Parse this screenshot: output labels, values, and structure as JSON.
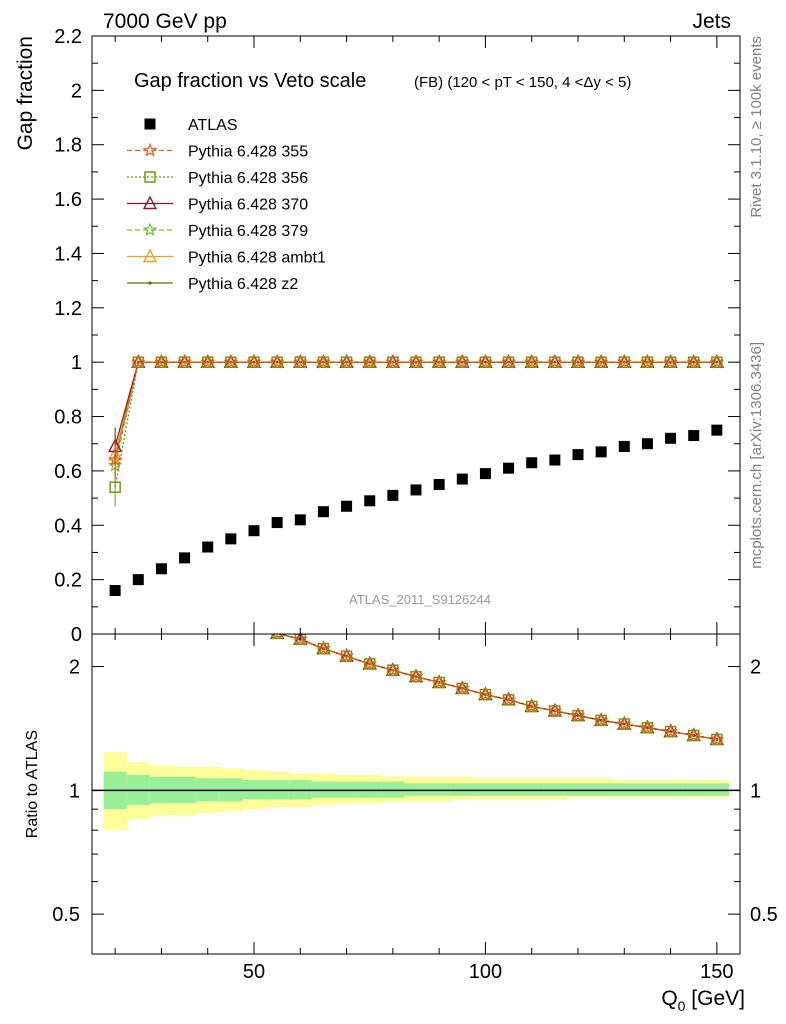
{
  "header": {
    "left": "7000 GeV pp",
    "right": "Jets",
    "side_rivet": "Rivet 3.1.10, ≥ 100k events",
    "side_mcplots": "mcplots.cern.ch [arXiv:1306.3436]",
    "watermark": "ATLAS_2011_S9126244"
  },
  "chart_data": [
    {
      "type": "scatter",
      "title": "Gap fraction vs Veto scale",
      "subtitle": "(FB) (120 < pT < 150, 4 <Δy < 5)",
      "ylabel": "Gap fraction",
      "xlim": [
        15,
        155
      ],
      "ylim": [
        0,
        2.2
      ],
      "yticks": [
        "0",
        "0.2",
        "0.4",
        "0.6",
        "0.8",
        "1",
        "1.2",
        "1.4",
        "1.6",
        "1.8",
        "2",
        "2.2"
      ],
      "x": [
        20,
        25,
        30,
        35,
        40,
        45,
        50,
        55,
        60,
        65,
        70,
        75,
        80,
        85,
        90,
        95,
        100,
        105,
        110,
        115,
        120,
        125,
        130,
        135,
        140,
        145,
        150
      ],
      "series": [
        {
          "name": "ATLAS",
          "color": "#000000",
          "marker": "square",
          "values": [
            0.16,
            0.2,
            0.24,
            0.28,
            0.32,
            0.35,
            0.38,
            0.41,
            0.42,
            0.45,
            0.47,
            0.49,
            0.51,
            0.53,
            0.55,
            0.57,
            0.59,
            0.61,
            0.63,
            0.64,
            0.66,
            0.67,
            0.69,
            0.7,
            0.72,
            0.73,
            0.75
          ]
        },
        {
          "name": "Pythia 6.428 355",
          "color": "#ee5a19",
          "marker": "star",
          "dash": "5,3",
          "values": [
            0.64,
            1,
            1,
            1,
            1,
            1,
            1,
            1,
            1,
            1,
            1,
            1,
            1,
            1,
            1,
            1,
            1,
            1,
            1,
            1,
            1,
            1,
            1,
            1,
            1,
            1,
            1
          ]
        },
        {
          "name": "Pythia 6.428 356",
          "color": "#6b9b0e",
          "marker": "open-square",
          "dash": "2,2",
          "values": [
            0.54,
            1,
            1,
            1,
            1,
            1,
            1,
            1,
            1,
            1,
            1,
            1,
            1,
            1,
            1,
            1,
            1,
            1,
            1,
            1,
            1,
            1,
            1,
            1,
            1,
            1,
            1
          ]
        },
        {
          "name": "Pythia 6.428 370",
          "color": "#8b1a2a",
          "marker": "open-triangle",
          "dash": "",
          "values": [
            0.69,
            1,
            1,
            1,
            1,
            1,
            1,
            1,
            1,
            1,
            1,
            1,
            1,
            1,
            1,
            1,
            1,
            1,
            1,
            1,
            1,
            1,
            1,
            1,
            1,
            1,
            1
          ]
        },
        {
          "name": "Pythia 6.428 379",
          "color": "#7dbb2a",
          "marker": "star",
          "dash": "5,3",
          "values": [
            0.62,
            1,
            1,
            1,
            1,
            1,
            1,
            1,
            1,
            1,
            1,
            1,
            1,
            1,
            1,
            1,
            1,
            1,
            1,
            1,
            1,
            1,
            1,
            1,
            1,
            1,
            1
          ]
        },
        {
          "name": "Pythia 6.428 ambt1",
          "color": "#f0a020",
          "marker": "open-triangle",
          "dash": "",
          "values": [
            0.66,
            1,
            1,
            1,
            1,
            1,
            1,
            1,
            1,
            1,
            1,
            1,
            1,
            1,
            1,
            1,
            1,
            1,
            1,
            1,
            1,
            1,
            1,
            1,
            1,
            1,
            1
          ]
        },
        {
          "name": "Pythia 6.428 z2",
          "color": "#6b6b10",
          "marker": "dot",
          "dash": "",
          "values": [
            0.65,
            1,
            1,
            1,
            1,
            1,
            1,
            1,
            1,
            1,
            1,
            1,
            1,
            1,
            1,
            1,
            1,
            1,
            1,
            1,
            1,
            1,
            1,
            1,
            1,
            1,
            1
          ]
        }
      ]
    },
    {
      "type": "line",
      "ylabel": "Ratio to ATLAS",
      "xlabel": "Q₀ [GeV]",
      "xlim": [
        15,
        155
      ],
      "ylim": [
        0.4,
        2.4
      ],
      "log_y": true,
      "yticks": [
        "0.5",
        "1",
        "2"
      ],
      "xticks": [
        "50",
        "100",
        "150"
      ],
      "bands": {
        "x_edges": [
          17.5,
          22.5,
          27.5,
          32.5,
          37.5,
          42.5,
          47.5,
          52.5,
          57.5,
          62.5,
          67.5,
          72.5,
          77.5,
          82.5,
          87.5,
          92.5,
          97.5,
          102.5,
          107.5,
          112.5,
          117.5,
          122.5,
          127.5,
          132.5,
          137.5,
          142.5,
          147.5,
          152.5
        ],
        "stat_lo": [
          0.9,
          0.92,
          0.93,
          0.93,
          0.94,
          0.94,
          0.95,
          0.95,
          0.95,
          0.96,
          0.96,
          0.96,
          0.96,
          0.97,
          0.97,
          0.97,
          0.97,
          0.97,
          0.97,
          0.97,
          0.97,
          0.97,
          0.97,
          0.97,
          0.97,
          0.97,
          0.97
        ],
        "stat_hi": [
          1.11,
          1.09,
          1.08,
          1.08,
          1.07,
          1.07,
          1.06,
          1.06,
          1.06,
          1.05,
          1.05,
          1.05,
          1.05,
          1.04,
          1.04,
          1.04,
          1.04,
          1.04,
          1.04,
          1.04,
          1.04,
          1.04,
          1.04,
          1.04,
          1.04,
          1.04,
          1.04
        ],
        "tot_lo": [
          0.8,
          0.85,
          0.87,
          0.87,
          0.88,
          0.89,
          0.9,
          0.91,
          0.91,
          0.92,
          0.93,
          0.93,
          0.94,
          0.94,
          0.94,
          0.95,
          0.95,
          0.95,
          0.95,
          0.95,
          0.96,
          0.96,
          0.96,
          0.96,
          0.96,
          0.96,
          0.96
        ],
        "tot_hi": [
          1.24,
          1.17,
          1.15,
          1.14,
          1.14,
          1.13,
          1.12,
          1.11,
          1.1,
          1.1,
          1.09,
          1.09,
          1.08,
          1.08,
          1.08,
          1.08,
          1.07,
          1.07,
          1.07,
          1.07,
          1.07,
          1.07,
          1.06,
          1.06,
          1.06,
          1.06,
          1.06
        ],
        "stat_color": "#99f099",
        "tot_color": "#ffff99"
      },
      "x": [
        55,
        60,
        65,
        70,
        75,
        80,
        85,
        90,
        95,
        100,
        105,
        110,
        115,
        120,
        125,
        130,
        135,
        140,
        145,
        150
      ],
      "values": [
        2.41,
        2.33,
        2.21,
        2.12,
        2.03,
        1.96,
        1.89,
        1.83,
        1.77,
        1.71,
        1.66,
        1.6,
        1.56,
        1.52,
        1.48,
        1.45,
        1.42,
        1.39,
        1.36,
        1.33
      ]
    }
  ]
}
